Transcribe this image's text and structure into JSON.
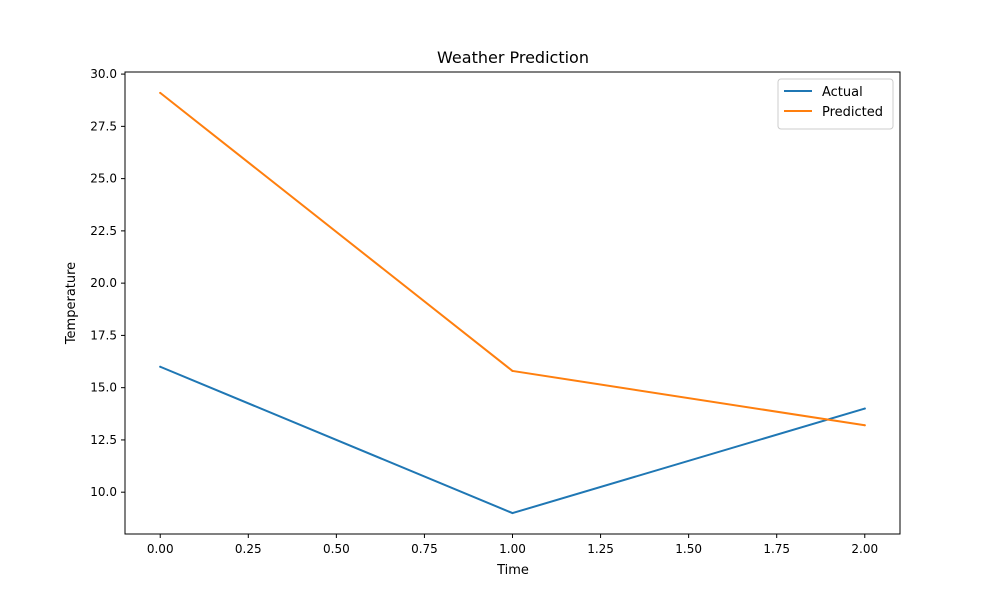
{
  "chart_data": {
    "type": "line",
    "title": "Weather Prediction",
    "xlabel": "Time",
    "ylabel": "Temperature",
    "x": [
      0,
      1,
      2
    ],
    "series": [
      {
        "name": "Actual",
        "color": "#1f77b4",
        "values": [
          16.0,
          9.0,
          14.0
        ]
      },
      {
        "name": "Predicted",
        "color": "#ff7f0e",
        "values": [
          29.1,
          15.8,
          13.2
        ]
      }
    ],
    "xlim": [
      -0.1,
      2.1
    ],
    "ylim": [
      8.0,
      30.1
    ],
    "xticks": [
      0.0,
      0.25,
      0.5,
      0.75,
      1.0,
      1.25,
      1.5,
      1.75,
      2.0
    ],
    "xtick_labels": [
      "0.00",
      "0.25",
      "0.50",
      "0.75",
      "1.00",
      "1.25",
      "1.50",
      "1.75",
      "2.00"
    ],
    "yticks": [
      10.0,
      12.5,
      15.0,
      17.5,
      20.0,
      22.5,
      25.0,
      27.5,
      30.0
    ],
    "ytick_labels": [
      "10.0",
      "12.5",
      "15.0",
      "17.5",
      "20.0",
      "22.5",
      "25.0",
      "27.5",
      "30.0"
    ],
    "grid": false,
    "legend_position": "top-right"
  }
}
